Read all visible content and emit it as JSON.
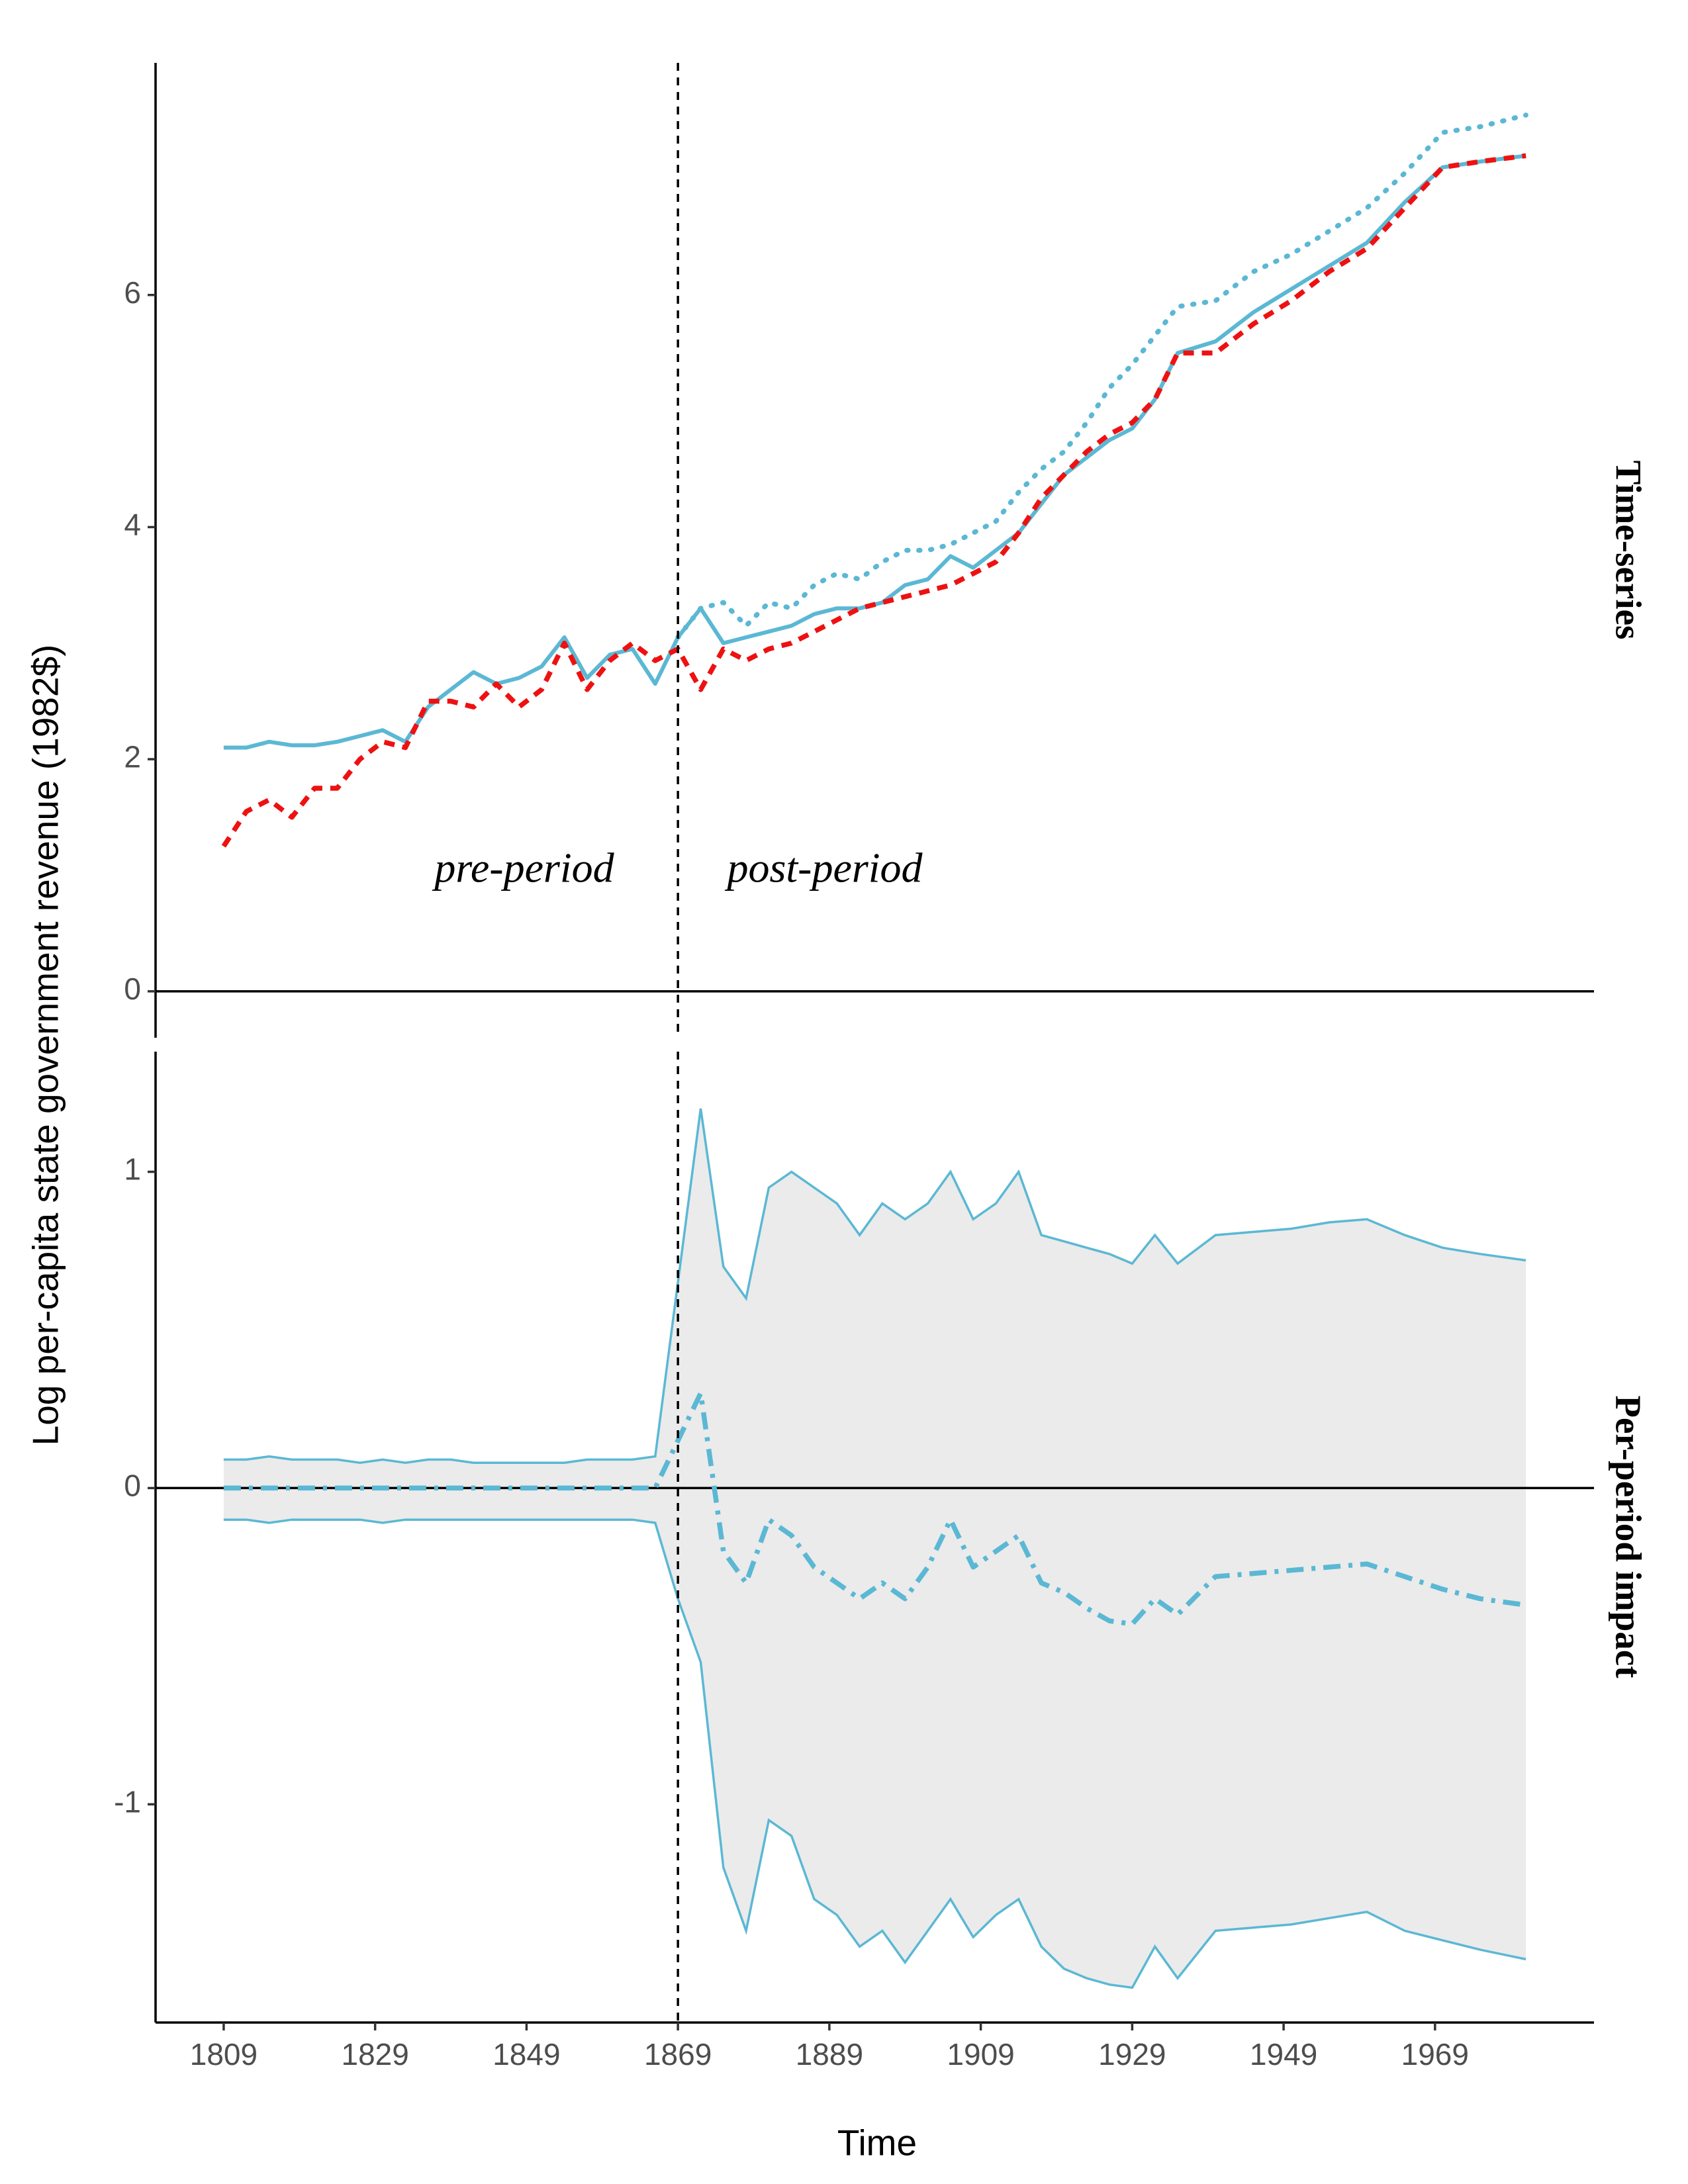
{
  "chart_data": [
    {
      "type": "line",
      "strip": "Time-series",
      "y_label": "Log per-capita state government revenue (1982$)",
      "annotations": [
        "pre-period",
        "post-period"
      ],
      "x": [
        1809,
        1812,
        1815,
        1818,
        1821,
        1824,
        1827,
        1830,
        1833,
        1836,
        1839,
        1842,
        1845,
        1848,
        1851,
        1854,
        1857,
        1860,
        1863,
        1866,
        1869,
        1872,
        1875,
        1878,
        1881,
        1884,
        1887,
        1890,
        1893,
        1896,
        1899,
        1902,
        1905,
        1908,
        1911,
        1914,
        1917,
        1920,
        1923,
        1926,
        1929,
        1932,
        1935,
        1940,
        1945,
        1950,
        1955,
        1960,
        1965,
        1970,
        1975,
        1981
      ],
      "series": [
        {
          "color": "#5bb8d4",
          "style": "solid",
          "values": [
            2.1,
            2.1,
            2.15,
            2.12,
            2.12,
            2.15,
            2.2,
            2.25,
            2.15,
            2.45,
            2.6,
            2.75,
            2.65,
            2.7,
            2.8,
            3.05,
            2.7,
            2.9,
            2.95,
            2.65,
            3.05,
            3.3,
            3.0,
            3.05,
            3.1,
            3.15,
            3.25,
            3.3,
            3.3,
            3.35,
            3.5,
            3.55,
            3.75,
            3.65,
            3.8,
            3.95,
            4.2,
            4.45,
            4.6,
            4.75,
            4.85,
            5.1,
            5.5,
            5.6,
            5.85,
            6.05,
            6.25,
            6.45,
            6.8,
            7.1,
            7.15,
            7.2
          ]
        },
        {
          "color": "#ee1111",
          "style": "dashed",
          "values": [
            1.25,
            1.55,
            1.65,
            1.5,
            1.75,
            1.75,
            2.0,
            2.15,
            2.1,
            2.5,
            2.5,
            2.45,
            2.65,
            2.45,
            2.6,
            3.0,
            2.6,
            2.85,
            3.0,
            2.85,
            2.95,
            2.6,
            2.95,
            2.85,
            2.95,
            3.0,
            3.1,
            3.2,
            3.3,
            3.35,
            3.4,
            3.45,
            3.5,
            3.6,
            3.7,
            3.95,
            4.25,
            4.45,
            4.65,
            4.8,
            4.9,
            5.1,
            5.5,
            5.5,
            5.75,
            5.95,
            6.2,
            6.4,
            6.75,
            7.1,
            7.15,
            7.2
          ]
        },
        {
          "color": "#5bb8d4",
          "style": "dotted",
          "values": [
            null,
            null,
            null,
            null,
            null,
            null,
            null,
            null,
            null,
            null,
            null,
            null,
            null,
            null,
            null,
            null,
            null,
            null,
            null,
            null,
            3.05,
            3.3,
            3.35,
            3.15,
            3.35,
            3.3,
            3.5,
            3.6,
            3.55,
            3.7,
            3.8,
            3.8,
            3.85,
            3.95,
            4.05,
            4.3,
            4.5,
            4.65,
            4.9,
            5.2,
            5.4,
            5.65,
            5.9,
            5.95,
            6.2,
            6.35,
            6.55,
            6.75,
            7.05,
            7.4,
            7.45,
            7.55
          ]
        }
      ],
      "xlim": [
        1800,
        1990
      ],
      "ylim": [
        -0.4,
        8.0
      ],
      "yticks": [
        0,
        2,
        4,
        6
      ],
      "vline": 1869,
      "hline": 0
    },
    {
      "type": "band",
      "strip": "Per-period impact",
      "x_label": "Time",
      "x": [
        1809,
        1812,
        1815,
        1818,
        1821,
        1824,
        1827,
        1830,
        1833,
        1836,
        1839,
        1842,
        1845,
        1848,
        1851,
        1854,
        1857,
        1860,
        1863,
        1866,
        1869,
        1872,
        1875,
        1878,
        1881,
        1884,
        1887,
        1890,
        1893,
        1896,
        1899,
        1902,
        1905,
        1908,
        1911,
        1914,
        1917,
        1920,
        1923,
        1926,
        1929,
        1932,
        1935,
        1940,
        1945,
        1950,
        1955,
        1960,
        1965,
        1970,
        1975,
        1981
      ],
      "band": {
        "color": "#5bb8d4",
        "fill": "#ebebeb",
        "upper": [
          0.09,
          0.09,
          0.1,
          0.09,
          0.09,
          0.09,
          0.08,
          0.09,
          0.08,
          0.09,
          0.09,
          0.08,
          0.08,
          0.08,
          0.08,
          0.08,
          0.09,
          0.09,
          0.09,
          0.1,
          0.65,
          1.2,
          0.7,
          0.6,
          0.95,
          1.0,
          0.95,
          0.9,
          0.8,
          0.9,
          0.85,
          0.9,
          1.0,
          0.85,
          0.9,
          1.0,
          0.8,
          0.78,
          0.76,
          0.74,
          0.71,
          0.8,
          0.71,
          0.8,
          0.81,
          0.82,
          0.84,
          0.85,
          0.8,
          0.76,
          0.74,
          0.72
        ],
        "lower": [
          -0.1,
          -0.1,
          -0.11,
          -0.1,
          -0.1,
          -0.1,
          -0.1,
          -0.11,
          -0.1,
          -0.1,
          -0.1,
          -0.1,
          -0.1,
          -0.1,
          -0.1,
          -0.1,
          -0.1,
          -0.1,
          -0.1,
          -0.11,
          -0.35,
          -0.55,
          -1.2,
          -1.4,
          -1.05,
          -1.1,
          -1.3,
          -1.35,
          -1.45,
          -1.4,
          -1.5,
          -1.4,
          -1.3,
          -1.42,
          -1.35,
          -1.3,
          -1.45,
          -1.52,
          -1.55,
          -1.57,
          -1.58,
          -1.45,
          -1.55,
          -1.4,
          -1.39,
          -1.38,
          -1.36,
          -1.34,
          -1.4,
          -1.43,
          -1.46,
          -1.49
        ]
      },
      "series": [
        {
          "color": "#5bb8d4",
          "style": "dashdot",
          "values": [
            0,
            0,
            0,
            0,
            0,
            0,
            0,
            0,
            0,
            0,
            0,
            0,
            0,
            0,
            0,
            0,
            0,
            0,
            0,
            0,
            0.15,
            0.3,
            -0.2,
            -0.3,
            -0.1,
            -0.15,
            -0.25,
            -0.3,
            -0.35,
            -0.3,
            -0.35,
            -0.25,
            -0.1,
            -0.25,
            -0.2,
            -0.15,
            -0.3,
            -0.33,
            -0.38,
            -0.42,
            -0.43,
            -0.35,
            -0.4,
            -0.28,
            -0.27,
            -0.26,
            -0.25,
            -0.24,
            -0.28,
            -0.32,
            -0.35,
            -0.37
          ]
        }
      ],
      "xlim": [
        1800,
        1990
      ],
      "ylim": [
        -1.69,
        1.38
      ],
      "yticks": [
        -1,
        0,
        1
      ],
      "xticks": [
        1809,
        1829,
        1849,
        1869,
        1889,
        1909,
        1929,
        1949,
        1969
      ],
      "vline": 1869,
      "hline": 0
    }
  ]
}
